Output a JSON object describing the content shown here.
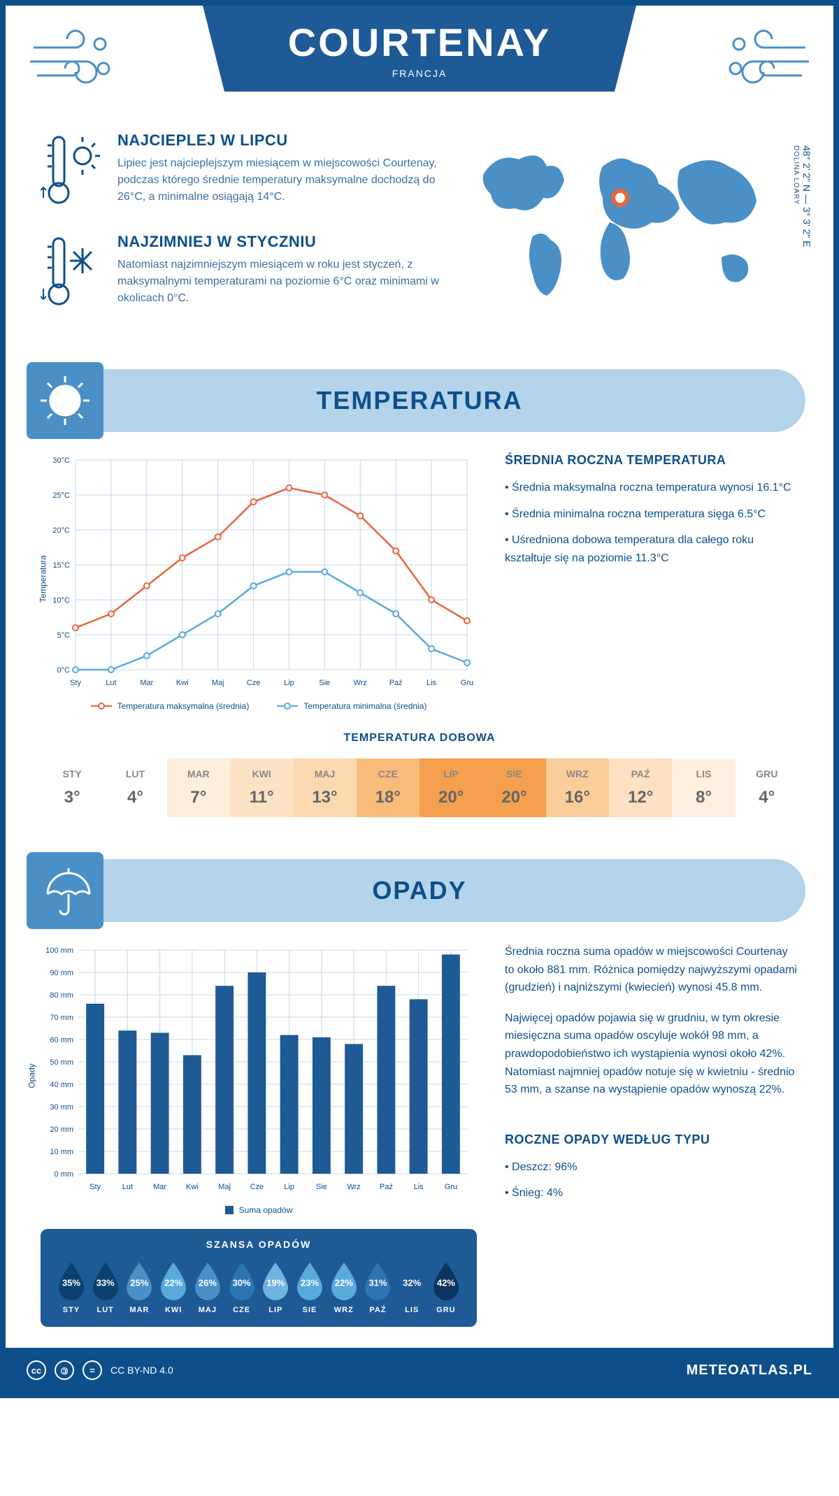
{
  "header": {
    "title": "COURTENAY",
    "country": "FRANCJA"
  },
  "coords": {
    "lat": "48° 2' 2\" N — 3° 3' 2\" E",
    "region": "DOLINA LOARY"
  },
  "hottest": {
    "title": "NAJCIEPLEJ W LIPCU",
    "text": "Lipiec jest najcieplejszym miesiącem w miejscowości Courtenay, podczas którego średnie temperatury maksymalne dochodzą do 26°C, a minimalne osiągają 14°C."
  },
  "coldest": {
    "title": "NAJZIMNIEJ W STYCZNIU",
    "text": "Natomiast najzimniejszym miesiącem w roku jest styczeń, z maksymalnymi temperaturami na poziomie 6°C oraz minimami w okolicach 0°C."
  },
  "temp_section": {
    "heading": "TEMPERATURA",
    "info_title": "ŚREDNIA ROCZNA TEMPERATURA",
    "bullets": [
      "• Średnia maksymalna roczna temperatura wynosi 16.1°C",
      "• Średnia minimalna roczna temperatura sięga 6.5°C",
      "• Uśredniona dobowa temperatura dla całego roku kształtuje się na poziomie 11.3°C"
    ],
    "chart": {
      "type": "line",
      "months": [
        "Sty",
        "Lut",
        "Mar",
        "Kwi",
        "Maj",
        "Cze",
        "Lip",
        "Sie",
        "Wrz",
        "Paź",
        "Lis",
        "Gru"
      ],
      "ylabel": "Temperatura",
      "ylim": [
        0,
        30
      ],
      "ytick_step": 5,
      "ytick_labels": [
        "0°C",
        "5°C",
        "10°C",
        "15°C",
        "20°C",
        "25°C",
        "30°C"
      ],
      "grid_color": "#c5d8e8",
      "background": "#ffffff",
      "series": [
        {
          "name": "Temperatura maksymalna (średnia)",
          "color": "#e8663c",
          "values": [
            6,
            8,
            12,
            16,
            19,
            24,
            26,
            25,
            22,
            17,
            10,
            7
          ]
        },
        {
          "name": "Temperatura minimalna (średnia)",
          "color": "#5aa9dd",
          "values": [
            0,
            0,
            2,
            5,
            8,
            12,
            14,
            14,
            11,
            8,
            3,
            1
          ]
        }
      ]
    }
  },
  "daily_temp": {
    "title": "TEMPERATURA DOBOWA",
    "months": [
      "STY",
      "LUT",
      "MAR",
      "KWI",
      "MAJ",
      "CZE",
      "LIP",
      "SIE",
      "WRZ",
      "PAŹ",
      "LIS",
      "GRU"
    ],
    "values": [
      "3°",
      "4°",
      "7°",
      "11°",
      "13°",
      "18°",
      "20°",
      "20°",
      "16°",
      "12°",
      "8°",
      "4°"
    ],
    "colors": [
      "#ffffff",
      "#ffffff",
      "#fdeedd",
      "#fde3c6",
      "#fcd9b0",
      "#f9bb7a",
      "#f4a04e",
      "#f4a04e",
      "#fbcd9a",
      "#fde1c2",
      "#feefe0",
      "#ffffff"
    ]
  },
  "precip_section": {
    "heading": "OPADY",
    "paragraphs": [
      "Średnia roczna suma opadów w miejscowości Courtenay to około 881 mm. Różnica pomiędzy najwyższymi opadami (grudzień) i najniższymi (kwiecień) wynosi 45.8 mm.",
      "Najwięcej opadów pojawia się w grudniu, w tym okresie miesięczna suma opadów oscyluje wokół 98 mm, a prawdopodobieństwo ich wystąpienia wynosi około 42%. Natomiast najmniej opadów notuje się w kwietniu - średnio 53 mm, a szanse na wystąpienie opadów wynoszą 22%."
    ],
    "chart": {
      "type": "bar",
      "months": [
        "Sty",
        "Lut",
        "Mar",
        "Kwi",
        "Maj",
        "Cze",
        "Lip",
        "Sie",
        "Wrz",
        "Paź",
        "Lis",
        "Gru"
      ],
      "ylabel": "Opady",
      "ylim": [
        0,
        100
      ],
      "ytick_step": 10,
      "ytick_labels": [
        "0 mm",
        "10 mm",
        "20 mm",
        "30 mm",
        "40 mm",
        "50 mm",
        "60 mm",
        "70 mm",
        "80 mm",
        "90 mm",
        "100 mm"
      ],
      "bar_color": "#1e5a96",
      "grid_color": "#c5d8e8",
      "legend": "Suma opadów",
      "values": [
        76,
        64,
        63,
        53,
        84,
        90,
        62,
        61,
        58,
        84,
        78,
        98
      ]
    },
    "chance": {
      "title": "SZANSA OPADÓW",
      "months": [
        "STY",
        "LUT",
        "MAR",
        "KWI",
        "MAJ",
        "CZE",
        "LIP",
        "SIE",
        "WRZ",
        "PAŹ",
        "LIS",
        "GRU"
      ],
      "values": [
        "35%",
        "33%",
        "25%",
        "22%",
        "26%",
        "30%",
        "19%",
        "23%",
        "22%",
        "31%",
        "32%",
        "42%"
      ],
      "colors": [
        "#0d4070",
        "#0d4070",
        "#4a90c7",
        "#5aa9dd",
        "#4a90c7",
        "#2d75b0",
        "#6fb4e0",
        "#5aa9dd",
        "#5aa9dd",
        "#2d75b0",
        "#1e5a96",
        "#0a3560"
      ]
    },
    "by_type": {
      "title": "ROCZNE OPADY WEDŁUG TYPU",
      "items": [
        "• Deszcz: 96%",
        "• Śnieg: 4%"
      ]
    }
  },
  "footer": {
    "license": "CC BY-ND 4.0",
    "site": "METEOATLAS.PL"
  }
}
